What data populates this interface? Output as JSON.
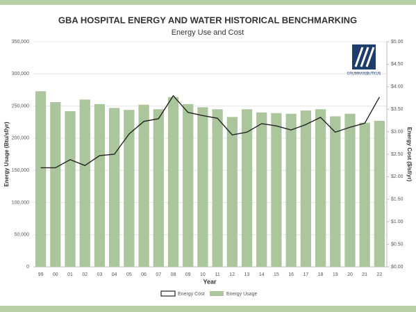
{
  "chart_data": {
    "type": "bar",
    "title": "GBA HOSPITAL ENERGY AND WATER HISTORICAL BENCHMARKING",
    "subtitle": "Energy Use and Cost",
    "x_label": "Year",
    "y_label": "Energy Usage (Btu/sf/yr)",
    "y2_label": "Energy Cost ($/sf/yr)",
    "logo_text": "GRUMMAN|BUTKUS",
    "categories": [
      "99",
      "00",
      "01",
      "02",
      "03",
      "04",
      "05",
      "06",
      "07",
      "08",
      "09",
      "10",
      "11",
      "12",
      "13",
      "14",
      "15",
      "16",
      "17",
      "18",
      "19",
      "20",
      "21",
      "22"
    ],
    "series": [
      {
        "name": "Energy Cost",
        "type": "line",
        "axis": "y2",
        "color": "#222222",
        "values": [
          2.2,
          2.2,
          2.38,
          2.25,
          2.47,
          2.5,
          2.95,
          3.23,
          3.29,
          3.8,
          3.43,
          3.36,
          3.3,
          2.93,
          2.99,
          3.18,
          3.13,
          3.04,
          3.16,
          3.32,
          2.99,
          3.1,
          3.19,
          3.77
        ]
      },
      {
        "name": "Energy Usage",
        "type": "bar",
        "color": "#abc69d",
        "values": [
          273000,
          256000,
          242000,
          260000,
          253000,
          247000,
          244000,
          252000,
          245000,
          264000,
          253000,
          248000,
          245000,
          233000,
          245000,
          240000,
          239000,
          238000,
          243000,
          245000,
          234000,
          238000,
          224000,
          227000
        ]
      }
    ],
    "ylim": [
      0,
      350000
    ],
    "yticks": [
      0,
      {
        "value": 50000,
        "label": "50,000"
      },
      {
        "value": 100000,
        "label": "100,000"
      },
      {
        "value": 150000,
        "label": "150,000"
      },
      {
        "value": 200000,
        "label": "200,000"
      },
      {
        "value": 250000,
        "label": "250,000"
      },
      {
        "value": 300000,
        "label": "300,000"
      },
      {
        "value": 350000,
        "label": "350,000"
      }
    ],
    "y2lim": [
      0,
      5
    ],
    "y2ticks": [
      {
        "value": 0,
        "label": "$0.00"
      },
      {
        "value": 0.5,
        "label": "$0.50"
      },
      {
        "value": 1,
        "label": "$1.00"
      },
      {
        "value": 1.5,
        "label": "$1.50"
      },
      {
        "value": 2,
        "label": "$2.00"
      },
      {
        "value": 2.5,
        "label": "$2.50"
      },
      {
        "value": 3,
        "label": "$3.00"
      },
      {
        "value": 3.5,
        "label": "$3.50"
      },
      {
        "value": 4,
        "label": "$4.00"
      },
      {
        "value": 4.5,
        "label": "$4.50"
      },
      {
        "value": 5,
        "label": "$5.00"
      }
    ],
    "grid": true
  }
}
